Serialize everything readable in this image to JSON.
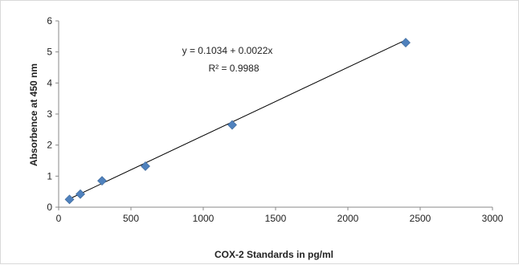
{
  "chart_data": {
    "type": "scatter",
    "x": [
      75,
      150,
      300,
      600,
      1200,
      2400
    ],
    "y": [
      0.25,
      0.42,
      0.85,
      1.32,
      2.65,
      5.3
    ],
    "xlabel": "COX-2 Standards  in pg/ml",
    "ylabel": "Absorbence at 450  nm",
    "xlim": [
      0,
      3000
    ],
    "ylim": [
      0,
      6
    ],
    "xticks": [
      0,
      500,
      1000,
      1500,
      2000,
      2500,
      3000
    ],
    "yticks": [
      0,
      1,
      2,
      3,
      4,
      5,
      6
    ],
    "trendline": {
      "type": "linear",
      "intercept": 0.1034,
      "slope": 0.0022,
      "x_range": [
        75,
        2400
      ]
    },
    "annotations": [
      "y = 0.1034  + 0.0022x",
      "R² = 0.9988"
    ],
    "grid": false,
    "legend": "none",
    "marker_shape": "diamond",
    "marker_color": "#4f81bd",
    "line_color": "#000000"
  }
}
